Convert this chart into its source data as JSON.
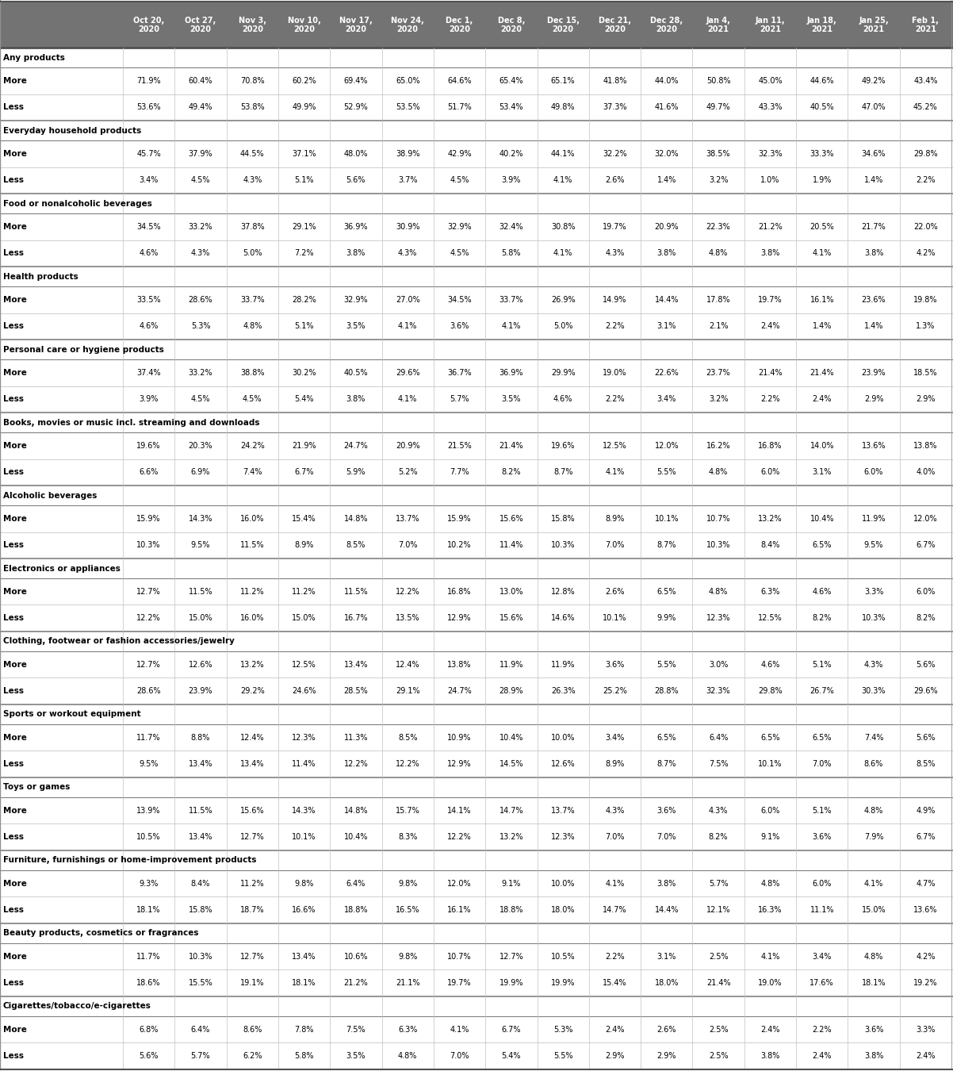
{
  "columns": [
    "Oct 20,\n2020",
    "Oct 27,\n2020",
    "Nov 3,\n2020",
    "Nov 10,\n2020",
    "Nov 17,\n2020",
    "Nov 24,\n2020",
    "Dec 1,\n2020",
    "Dec 8,\n2020",
    "Dec 15,\n2020",
    "Dec 21,\n2020",
    "Dec 28,\n2020",
    "Jan 4,\n2021",
    "Jan 11,\n2021",
    "Jan 18,\n2021",
    "Jan 25,\n2021",
    "Feb 1,\n2021"
  ],
  "sections": [
    {
      "name": "Any products",
      "rows": [
        {
          "label": "More",
          "values": [
            "71.9%",
            "60.4%",
            "70.8%",
            "60.2%",
            "69.4%",
            "65.0%",
            "64.6%",
            "65.4%",
            "65.1%",
            "41.8%",
            "44.0%",
            "50.8%",
            "45.0%",
            "44.6%",
            "49.2%",
            "43.4%"
          ]
        },
        {
          "label": "Less",
          "values": [
            "53.6%",
            "49.4%",
            "53.8%",
            "49.9%",
            "52.9%",
            "53.5%",
            "51.7%",
            "53.4%",
            "49.8%",
            "37.3%",
            "41.6%",
            "49.7%",
            "43.3%",
            "40.5%",
            "47.0%",
            "45.2%"
          ]
        }
      ]
    },
    {
      "name": "Everyday household products",
      "rows": [
        {
          "label": "More",
          "values": [
            "45.7%",
            "37.9%",
            "44.5%",
            "37.1%",
            "48.0%",
            "38.9%",
            "42.9%",
            "40.2%",
            "44.1%",
            "32.2%",
            "32.0%",
            "38.5%",
            "32.3%",
            "33.3%",
            "34.6%",
            "29.8%"
          ]
        },
        {
          "label": "Less",
          "values": [
            "3.4%",
            "4.5%",
            "4.3%",
            "5.1%",
            "5.6%",
            "3.7%",
            "4.5%",
            "3.9%",
            "4.1%",
            "2.6%",
            "1.4%",
            "3.2%",
            "1.0%",
            "1.9%",
            "1.4%",
            "2.2%"
          ]
        }
      ]
    },
    {
      "name": "Food or nonalcoholic beverages",
      "rows": [
        {
          "label": "More",
          "values": [
            "34.5%",
            "33.2%",
            "37.8%",
            "29.1%",
            "36.9%",
            "30.9%",
            "32.9%",
            "32.4%",
            "30.8%",
            "19.7%",
            "20.9%",
            "22.3%",
            "21.2%",
            "20.5%",
            "21.7%",
            "22.0%"
          ]
        },
        {
          "label": "Less",
          "values": [
            "4.6%",
            "4.3%",
            "5.0%",
            "7.2%",
            "3.8%",
            "4.3%",
            "4.5%",
            "5.8%",
            "4.1%",
            "4.3%",
            "3.8%",
            "4.8%",
            "3.8%",
            "4.1%",
            "3.8%",
            "4.2%"
          ]
        }
      ]
    },
    {
      "name": "Health products",
      "rows": [
        {
          "label": "More",
          "values": [
            "33.5%",
            "28.6%",
            "33.7%",
            "28.2%",
            "32.9%",
            "27.0%",
            "34.5%",
            "33.7%",
            "26.9%",
            "14.9%",
            "14.4%",
            "17.8%",
            "19.7%",
            "16.1%",
            "23.6%",
            "19.8%"
          ]
        },
        {
          "label": "Less",
          "values": [
            "4.6%",
            "5.3%",
            "4.8%",
            "5.1%",
            "3.5%",
            "4.1%",
            "3.6%",
            "4.1%",
            "5.0%",
            "2.2%",
            "3.1%",
            "2.1%",
            "2.4%",
            "1.4%",
            "1.4%",
            "1.3%"
          ]
        }
      ]
    },
    {
      "name": "Personal care or hygiene products",
      "rows": [
        {
          "label": "More",
          "values": [
            "37.4%",
            "33.2%",
            "38.8%",
            "30.2%",
            "40.5%",
            "29.6%",
            "36.7%",
            "36.9%",
            "29.9%",
            "19.0%",
            "22.6%",
            "23.7%",
            "21.4%",
            "21.4%",
            "23.9%",
            "18.5%"
          ]
        },
        {
          "label": "Less",
          "values": [
            "3.9%",
            "4.5%",
            "4.5%",
            "5.4%",
            "3.8%",
            "4.1%",
            "5.7%",
            "3.5%",
            "4.6%",
            "2.2%",
            "3.4%",
            "3.2%",
            "2.2%",
            "2.4%",
            "2.9%",
            "2.9%"
          ]
        }
      ]
    },
    {
      "name": "Books, movies or music incl. streaming and downloads",
      "rows": [
        {
          "label": "More",
          "values": [
            "19.6%",
            "20.3%",
            "24.2%",
            "21.9%",
            "24.7%",
            "20.9%",
            "21.5%",
            "21.4%",
            "19.6%",
            "12.5%",
            "12.0%",
            "16.2%",
            "16.8%",
            "14.0%",
            "13.6%",
            "13.8%"
          ]
        },
        {
          "label": "Less",
          "values": [
            "6.6%",
            "6.9%",
            "7.4%",
            "6.7%",
            "5.9%",
            "5.2%",
            "7.7%",
            "8.2%",
            "8.7%",
            "4.1%",
            "5.5%",
            "4.8%",
            "6.0%",
            "3.1%",
            "6.0%",
            "4.0%"
          ]
        }
      ]
    },
    {
      "name": "Alcoholic beverages",
      "rows": [
        {
          "label": "More",
          "values": [
            "15.9%",
            "14.3%",
            "16.0%",
            "15.4%",
            "14.8%",
            "13.7%",
            "15.9%",
            "15.6%",
            "15.8%",
            "8.9%",
            "10.1%",
            "10.7%",
            "13.2%",
            "10.4%",
            "11.9%",
            "12.0%"
          ]
        },
        {
          "label": "Less",
          "values": [
            "10.3%",
            "9.5%",
            "11.5%",
            "8.9%",
            "8.5%",
            "7.0%",
            "10.2%",
            "11.4%",
            "10.3%",
            "7.0%",
            "8.7%",
            "10.3%",
            "8.4%",
            "6.5%",
            "9.5%",
            "6.7%"
          ]
        }
      ]
    },
    {
      "name": "Electronics or appliances",
      "rows": [
        {
          "label": "More",
          "values": [
            "12.7%",
            "11.5%",
            "11.2%",
            "11.2%",
            "11.5%",
            "12.2%",
            "16.8%",
            "13.0%",
            "12.8%",
            "2.6%",
            "6.5%",
            "4.8%",
            "6.3%",
            "4.6%",
            "3.3%",
            "6.0%"
          ]
        },
        {
          "label": "Less",
          "values": [
            "12.2%",
            "15.0%",
            "16.0%",
            "15.0%",
            "16.7%",
            "13.5%",
            "12.9%",
            "15.6%",
            "14.6%",
            "10.1%",
            "9.9%",
            "12.3%",
            "12.5%",
            "8.2%",
            "10.3%",
            "8.2%"
          ]
        }
      ]
    },
    {
      "name": "Clothing, footwear or fashion accessories/jewelry",
      "rows": [
        {
          "label": "More",
          "values": [
            "12.7%",
            "12.6%",
            "13.2%",
            "12.5%",
            "13.4%",
            "12.4%",
            "13.8%",
            "11.9%",
            "11.9%",
            "3.6%",
            "5.5%",
            "3.0%",
            "4.6%",
            "5.1%",
            "4.3%",
            "5.6%"
          ]
        },
        {
          "label": "Less",
          "values": [
            "28.6%",
            "23.9%",
            "29.2%",
            "24.6%",
            "28.5%",
            "29.1%",
            "24.7%",
            "28.9%",
            "26.3%",
            "25.2%",
            "28.8%",
            "32.3%",
            "29.8%",
            "26.7%",
            "30.3%",
            "29.6%"
          ]
        }
      ]
    },
    {
      "name": "Sports or workout equipment",
      "rows": [
        {
          "label": "More",
          "values": [
            "11.7%",
            "8.8%",
            "12.4%",
            "12.3%",
            "11.3%",
            "8.5%",
            "10.9%",
            "10.4%",
            "10.0%",
            "3.4%",
            "6.5%",
            "6.4%",
            "6.5%",
            "6.5%",
            "7.4%",
            "5.6%"
          ]
        },
        {
          "label": "Less",
          "values": [
            "9.5%",
            "13.4%",
            "13.4%",
            "11.4%",
            "12.2%",
            "12.2%",
            "12.9%",
            "14.5%",
            "12.6%",
            "8.9%",
            "8.7%",
            "7.5%",
            "10.1%",
            "7.0%",
            "8.6%",
            "8.5%"
          ]
        }
      ]
    },
    {
      "name": "Toys or games",
      "rows": [
        {
          "label": "More",
          "values": [
            "13.9%",
            "11.5%",
            "15.6%",
            "14.3%",
            "14.8%",
            "15.7%",
            "14.1%",
            "14.7%",
            "13.7%",
            "4.3%",
            "3.6%",
            "4.3%",
            "6.0%",
            "5.1%",
            "4.8%",
            "4.9%"
          ]
        },
        {
          "label": "Less",
          "values": [
            "10.5%",
            "13.4%",
            "12.7%",
            "10.1%",
            "10.4%",
            "8.3%",
            "12.2%",
            "13.2%",
            "12.3%",
            "7.0%",
            "7.0%",
            "8.2%",
            "9.1%",
            "3.6%",
            "7.9%",
            "6.7%"
          ]
        }
      ]
    },
    {
      "name": "Furniture, furnishings or home-improvement products",
      "rows": [
        {
          "label": "More",
          "values": [
            "9.3%",
            "8.4%",
            "11.2%",
            "9.8%",
            "6.4%",
            "9.8%",
            "12.0%",
            "9.1%",
            "10.0%",
            "4.1%",
            "3.8%",
            "5.7%",
            "4.8%",
            "6.0%",
            "4.1%",
            "4.7%"
          ]
        },
        {
          "label": "Less",
          "values": [
            "18.1%",
            "15.8%",
            "18.7%",
            "16.6%",
            "18.8%",
            "16.5%",
            "16.1%",
            "18.8%",
            "18.0%",
            "14.7%",
            "14.4%",
            "12.1%",
            "16.3%",
            "11.1%",
            "15.0%",
            "13.6%"
          ]
        }
      ]
    },
    {
      "name": "Beauty products, cosmetics or fragrances",
      "rows": [
        {
          "label": "More",
          "values": [
            "11.7%",
            "10.3%",
            "12.7%",
            "13.4%",
            "10.6%",
            "9.8%",
            "10.7%",
            "12.7%",
            "10.5%",
            "2.2%",
            "3.1%",
            "2.5%",
            "4.1%",
            "3.4%",
            "4.8%",
            "4.2%"
          ]
        },
        {
          "label": "Less",
          "values": [
            "18.6%",
            "15.5%",
            "19.1%",
            "18.1%",
            "21.2%",
            "21.1%",
            "19.7%",
            "19.9%",
            "19.9%",
            "15.4%",
            "18.0%",
            "21.4%",
            "19.0%",
            "17.6%",
            "18.1%",
            "19.2%"
          ]
        }
      ]
    },
    {
      "name": "Cigarettes/tobacco/e-cigarettes",
      "rows": [
        {
          "label": "More",
          "values": [
            "6.8%",
            "6.4%",
            "8.6%",
            "7.8%",
            "7.5%",
            "6.3%",
            "4.1%",
            "6.7%",
            "5.3%",
            "2.4%",
            "2.6%",
            "2.5%",
            "2.4%",
            "2.2%",
            "3.6%",
            "3.3%"
          ]
        },
        {
          "label": "Less",
          "values": [
            "5.6%",
            "5.7%",
            "6.2%",
            "5.8%",
            "3.5%",
            "4.8%",
            "7.0%",
            "5.4%",
            "5.5%",
            "2.9%",
            "2.9%",
            "2.5%",
            "3.8%",
            "2.4%",
            "3.8%",
            "2.4%"
          ]
        }
      ]
    }
  ],
  "header_bg": "#737373",
  "header_text": "#ffffff",
  "section_text": "#000000",
  "data_text": "#000000",
  "row_bg_even": "#ffffff",
  "row_bg_odd": "#ffffff",
  "sep_color_light": "#c8c8c8",
  "sep_color_dark": "#808080",
  "fig_width": 12.02,
  "fig_height": 13.5,
  "dpi": 100
}
